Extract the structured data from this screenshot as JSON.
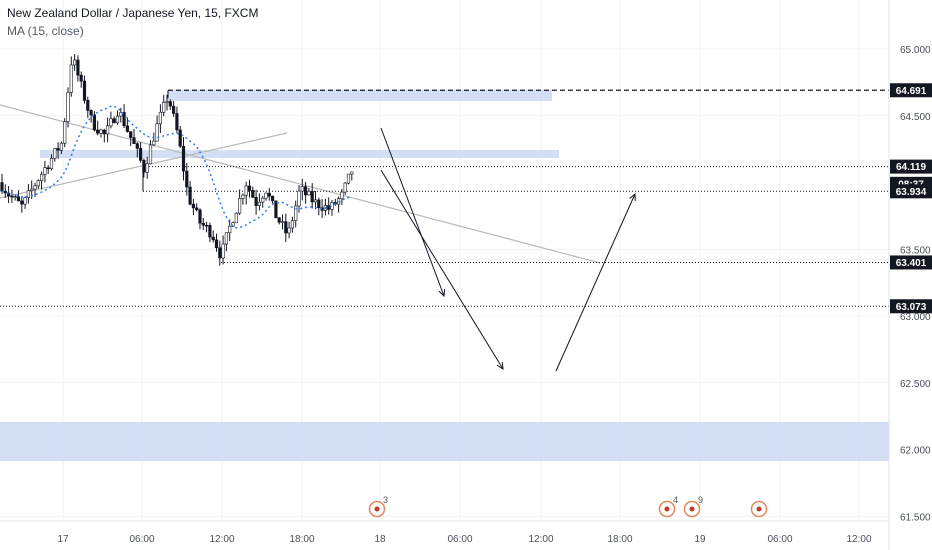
{
  "header": {
    "title": "New Zealand Dollar / Japanese Yen, 15, FXCM",
    "indicator": "MA (15, close)"
  },
  "colors": {
    "bull": "#ffffff",
    "bear": "#131722",
    "wick": "#131722",
    "ma": "#3179f5",
    "zone": "#cfdcf5",
    "trend": "#b9b9b9",
    "tag": "#131722",
    "grid": "#eef0f3",
    "event": "#e08a5c"
  },
  "chart_data": {
    "type": "candlestick",
    "symbol": "NZDJPY",
    "timeframe": "15",
    "ylim": [
      61.45,
      65.25
    ],
    "y_ticks": [
      "65.000",
      "64.500",
      "63.500",
      "63.000",
      "62.500",
      "62.000",
      "61.500"
    ],
    "x_ticks": [
      "17",
      "06:00",
      "12:00",
      "18:00",
      "18",
      "06:00",
      "12:00",
      "18:00",
      "19",
      "06:00",
      "12:00"
    ],
    "price_tags": [
      {
        "label": "64.691",
        "value": 64.691
      },
      {
        "label": "64.119",
        "value": 64.119
      },
      {
        "label": "08:37",
        "value": 63.99
      },
      {
        "label": "63.934",
        "value": 63.934
      },
      {
        "label": "63.401",
        "value": 63.401
      },
      {
        "label": "63.073",
        "value": 63.073
      }
    ],
    "events": [
      {
        "label": "3"
      },
      {
        "label": "4"
      },
      {
        "label": "9"
      },
      {
        "label": ""
      }
    ]
  }
}
